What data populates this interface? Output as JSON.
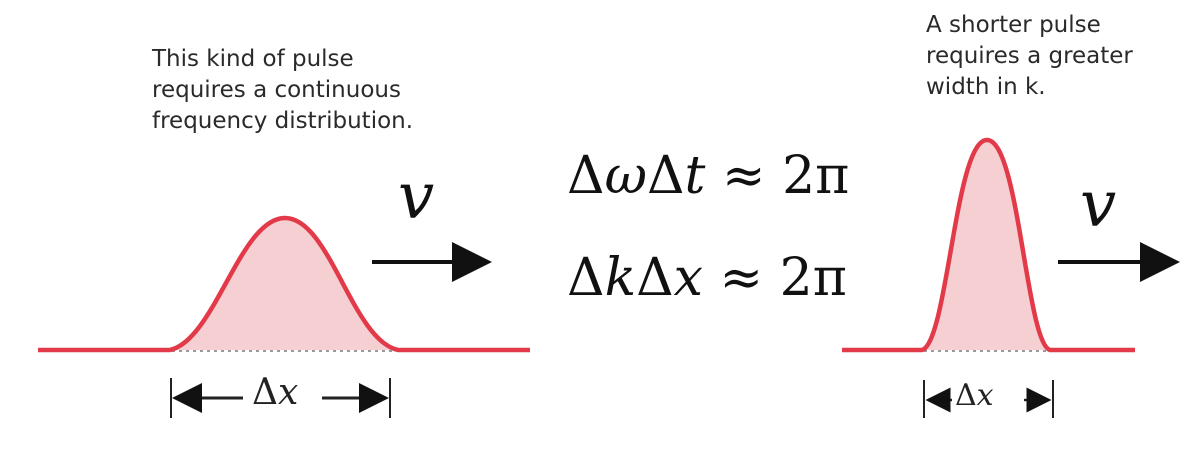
{
  "left_panel": {
    "caption_lines": [
      "This kind of pulse",
      "requires a continuous",
      "frequency distribution."
    ],
    "velocity_symbol": "v",
    "width_label": {
      "delta": "Δ",
      "var": "x"
    }
  },
  "right_panel": {
    "caption_lines": [
      "A shorter pulse",
      "requires a greater",
      "width in k."
    ],
    "velocity_symbol": "v",
    "width_label": {
      "delta": "Δ",
      "var": "x"
    }
  },
  "equations": {
    "time_frequency": {
      "d1": "Δ",
      "v1": "ω",
      "d2": "Δ",
      "v2": "t",
      "rel": " ≈ ",
      "rhs": "2π"
    },
    "space_wavenumber": {
      "d1": "Δ",
      "v1": "k",
      "d2": "Δ",
      "v2": "x",
      "rel": " ≈ ",
      "rhs": "2π"
    }
  },
  "colors": {
    "pulse_stroke": "#e23a48",
    "pulse_fill": "#f6cfd3",
    "baseline_dots": "#9a9a9a",
    "arrow": "#111111",
    "text": "#2a2a2a"
  }
}
